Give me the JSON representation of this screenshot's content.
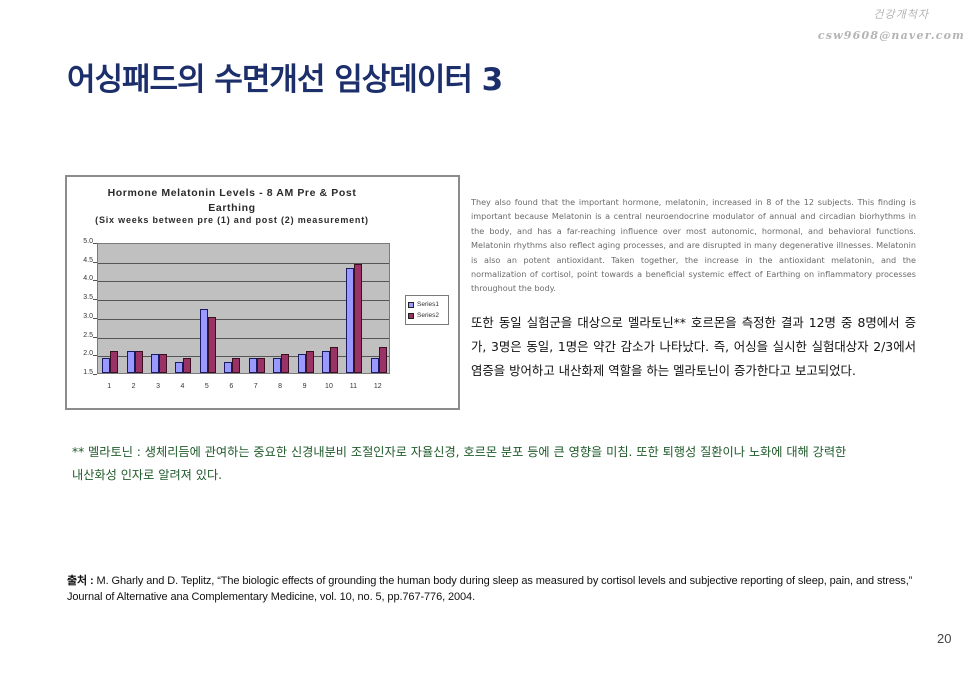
{
  "watermark": {
    "name": "건강개척자",
    "email": "csw9608@naver.com"
  },
  "page": {
    "title": "어싱패드의 수면개선 임상데이터 3",
    "number": "20"
  },
  "chart_data": {
    "type": "bar",
    "title": "Hormone Melatonin Levels - 8 AM Pre & Post Earthing",
    "title_line1": "Hormone Melatonin Levels - 8 AM  Pre & Post",
    "title_line2": "Earthing",
    "subtitle": "(Six weeks between pre (1) and post (2) measurement)",
    "xlabel": "",
    "ylabel": "",
    "categories": [
      "1",
      "2",
      "3",
      "4",
      "5",
      "6",
      "7",
      "8",
      "9",
      "10",
      "11",
      "12"
    ],
    "series": [
      {
        "name": "Series1",
        "color": "#9999ff",
        "values": [
          1.9,
          2.1,
          2.0,
          1.8,
          3.2,
          1.8,
          1.9,
          1.9,
          2.0,
          2.1,
          4.3,
          1.9
        ]
      },
      {
        "name": "Series2",
        "color": "#993366",
        "values": [
          2.1,
          2.1,
          2.0,
          1.9,
          3.0,
          1.9,
          1.9,
          2.0,
          2.1,
          2.2,
          4.4,
          2.2
        ]
      }
    ],
    "ylim": [
      1.5,
      5.0
    ],
    "yticks": [
      "5.0",
      "4.5",
      "4.0",
      "3.5",
      "3.0",
      "2.5",
      "2.0",
      "1.5"
    ],
    "grid": true,
    "plot_background": "#c0c0c0",
    "legend_position": "right"
  },
  "english_paragraph": "They also found that the important hormone, melatonin, increased in 8 of the 12 subjects. This finding is important because Melatonin is a central neuroendocrine modulator of annual and circadian biorhythms in the body, and has a far-reaching influence over most autonomic, hormonal, and behavioral functions. Melatonin rhythms also reflect aging processes, and are disrupted in many degenerative illnesses. Melatonin is also an potent antioxidant. Taken together, the increase in the antioxidant melatonin, and the normalization of cortisol, point towards a beneficial systemic effect of Earthing on inflammatory processes throughout the body.",
  "korean_paragraph": "또한 동일 실험군을 대상으로 멜라토닌** 호르몬을 측정한 결과 12명 중 8명에서 증가, 3명은 동일, 1명은 약간 감소가 나타났다. 즉, 어싱을 실시한 실험대상자 2/3에서 염증을 방어하고 내산화제 역할을 하는 멜라토닌이 증가한다고 보고되었다.",
  "footnote": {
    "line1": "** 멜라토닌 : 생체리듬에 관여하는 중요한 신경내분비 조절인자로 자율신경, 호르몬 분포 등에 큰 영향을 미침. 또한 퇴행성 질환이나 노화에 대해 강력한",
    "line2": "내산화성 인자로 알려져 있다."
  },
  "citation": {
    "label": "출처 :",
    "text": " M. Gharly and D. Teplitz, “The biologic effects of grounding the human body during sleep as measured by cortisol levels and subjective reporting of sleep, pain, and stress,” Journal of Alternative ana Complementary Medicine, vol. 10, no. 5, pp.767-776, 2004."
  }
}
